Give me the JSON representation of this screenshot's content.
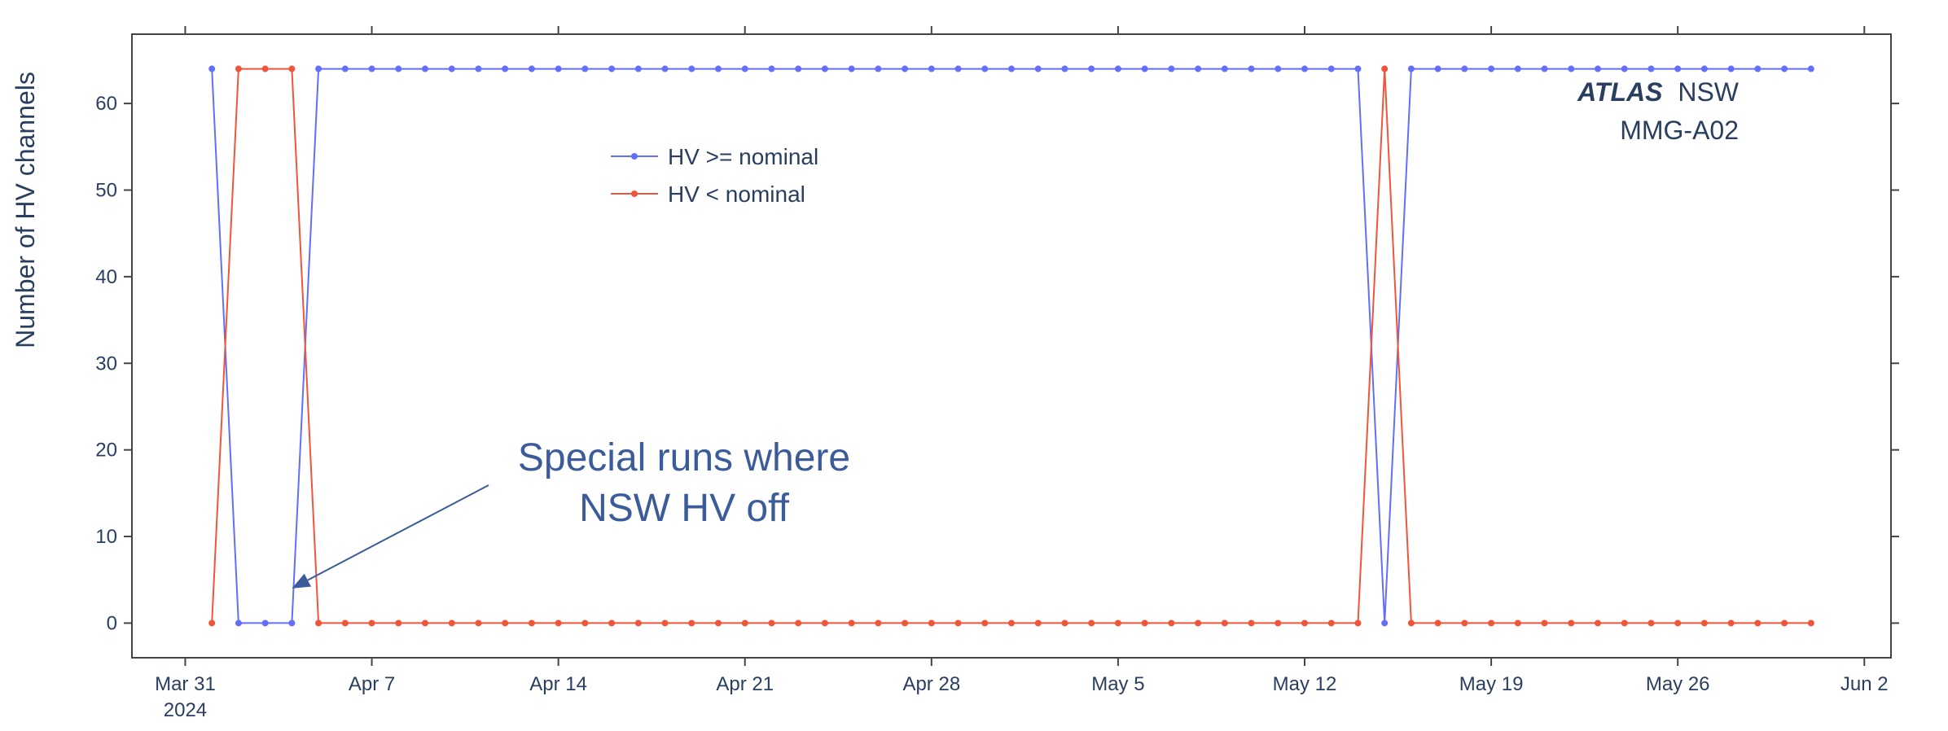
{
  "chart_data": {
    "type": "line",
    "title": "",
    "xlabel": "",
    "ylabel": "Number of HV channels",
    "ylim": [
      -4,
      68
    ],
    "xlim": [
      "2024-03-29 00:00",
      "2024-06-03 00:00"
    ],
    "grid": false,
    "legend_position": "upper-left inside plot",
    "x_ticks": [
      {
        "date": "2024-03-31",
        "label": "Mar 31",
        "sublabel": "2024"
      },
      {
        "date": "2024-04-07",
        "label": "Apr 7"
      },
      {
        "date": "2024-04-14",
        "label": "Apr 14"
      },
      {
        "date": "2024-04-21",
        "label": "Apr 21"
      },
      {
        "date": "2024-04-28",
        "label": "Apr 28"
      },
      {
        "date": "2024-05-05",
        "label": "May 5"
      },
      {
        "date": "2024-05-12",
        "label": "May 12"
      },
      {
        "date": "2024-05-19",
        "label": "May 19"
      },
      {
        "date": "2024-05-26",
        "label": "May 26"
      },
      {
        "date": "2024-06-02",
        "label": "Jun 2"
      }
    ],
    "y_ticks": [
      0,
      10,
      20,
      30,
      40,
      50,
      60
    ],
    "y_tick_labels": [
      "0",
      "10",
      "20",
      "30",
      "40",
      "50",
      "60"
    ],
    "x": [
      "2024-04-01",
      "2024-04-02",
      "2024-04-03",
      "2024-04-04",
      "2024-04-05",
      "2024-04-06",
      "2024-04-07",
      "2024-04-08",
      "2024-04-09",
      "2024-04-10",
      "2024-04-11",
      "2024-04-12",
      "2024-04-13",
      "2024-04-14",
      "2024-04-15",
      "2024-04-16",
      "2024-04-17",
      "2024-04-18",
      "2024-04-19",
      "2024-04-20",
      "2024-04-21",
      "2024-04-22",
      "2024-04-23",
      "2024-04-24",
      "2024-04-25",
      "2024-04-26",
      "2024-04-27",
      "2024-04-28",
      "2024-04-29",
      "2024-04-30",
      "2024-05-01",
      "2024-05-02",
      "2024-05-03",
      "2024-05-04",
      "2024-05-05",
      "2024-05-06",
      "2024-05-07",
      "2024-05-08",
      "2024-05-09",
      "2024-05-10",
      "2024-05-11",
      "2024-05-12",
      "2024-05-13",
      "2024-05-14",
      "2024-05-15",
      "2024-05-16",
      "2024-05-17",
      "2024-05-18",
      "2024-05-19",
      "2024-05-20",
      "2024-05-21",
      "2024-05-22",
      "2024-05-23",
      "2024-05-24",
      "2024-05-25",
      "2024-05-26",
      "2024-05-27",
      "2024-05-28",
      "2024-05-29",
      "2024-05-30",
      "2024-05-31"
    ],
    "series": [
      {
        "name": "HV >= nominal",
        "color": "#636efa",
        "values": [
          64,
          0,
          0,
          0,
          64,
          64,
          64,
          64,
          64,
          64,
          64,
          64,
          64,
          64,
          64,
          64,
          64,
          64,
          64,
          64,
          64,
          64,
          64,
          64,
          64,
          64,
          64,
          64,
          64,
          64,
          64,
          64,
          64,
          64,
          64,
          64,
          64,
          64,
          64,
          64,
          64,
          64,
          64,
          64,
          0,
          64,
          64,
          64,
          64,
          64,
          64,
          64,
          64,
          64,
          64,
          64,
          64,
          64,
          64,
          64,
          64
        ]
      },
      {
        "name": "HV < nominal",
        "color": "#ef553b",
        "values": [
          0,
          64,
          64,
          64,
          0,
          0,
          0,
          0,
          0,
          0,
          0,
          0,
          0,
          0,
          0,
          0,
          0,
          0,
          0,
          0,
          0,
          0,
          0,
          0,
          0,
          0,
          0,
          0,
          0,
          0,
          0,
          0,
          0,
          0,
          0,
          0,
          0,
          0,
          0,
          0,
          0,
          0,
          0,
          0,
          64,
          0,
          0,
          0,
          0,
          0,
          0,
          0,
          0,
          0,
          0,
          0,
          0,
          0,
          0,
          0,
          0
        ]
      }
    ],
    "branding": {
      "experiment": "ATLAS",
      "subsystem": "NSW",
      "detector": "MMG-A02"
    },
    "annotation": {
      "lines": [
        "Special runs where",
        "NSW HV off"
      ],
      "color": "#3b5b9a",
      "arrow_to": {
        "date": "2024-04-04",
        "value": 4
      }
    }
  }
}
